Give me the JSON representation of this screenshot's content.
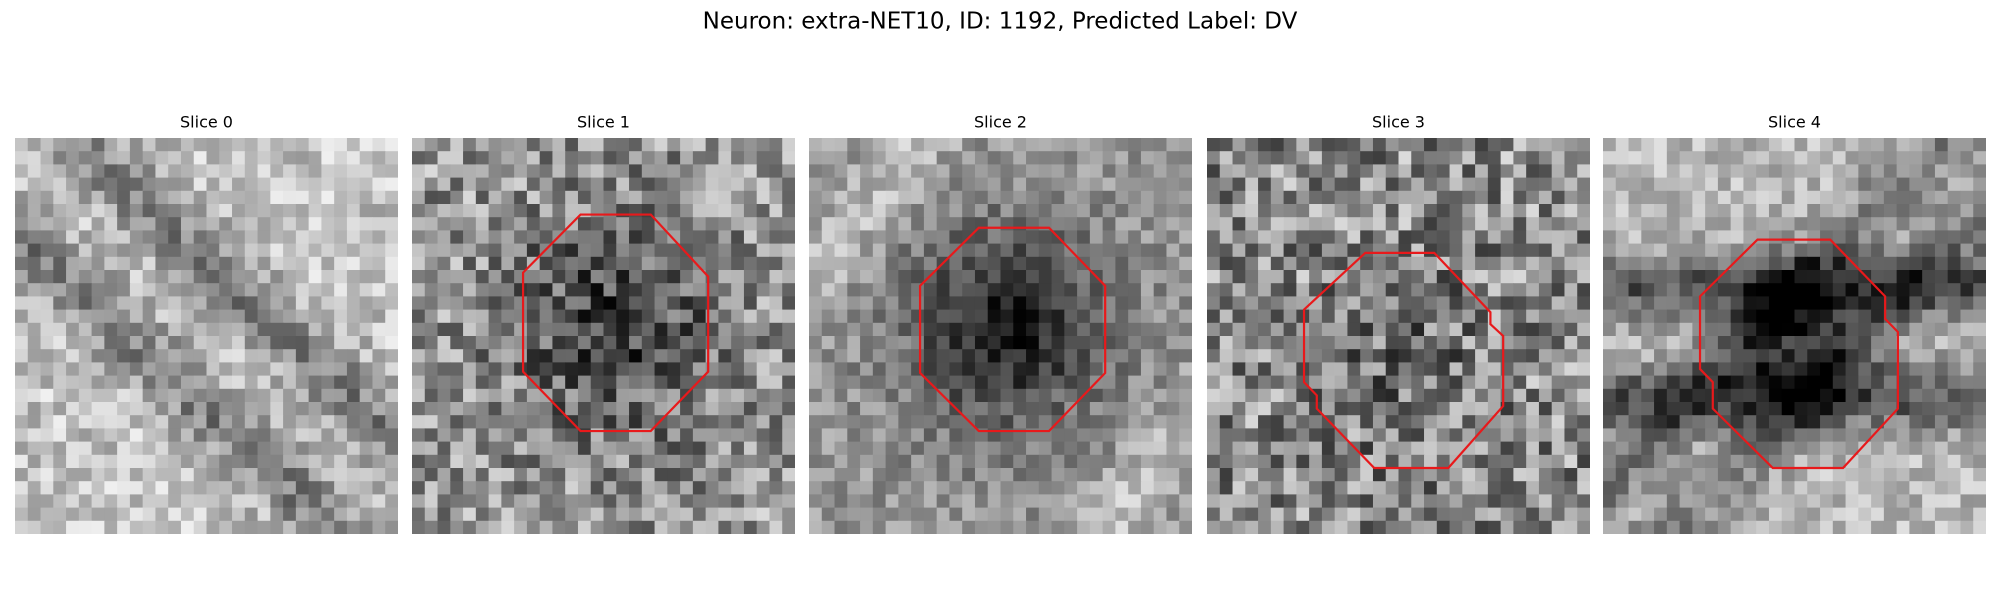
{
  "header": {
    "title": "Neuron: extra-NET10, ID: 1192, Predicted Label: DV"
  },
  "panels": [
    {
      "title": "Slice 0"
    },
    {
      "title": "Slice 1"
    },
    {
      "title": "Slice 2"
    },
    {
      "title": "Slice 3"
    },
    {
      "title": "Slice 4"
    }
  ]
}
